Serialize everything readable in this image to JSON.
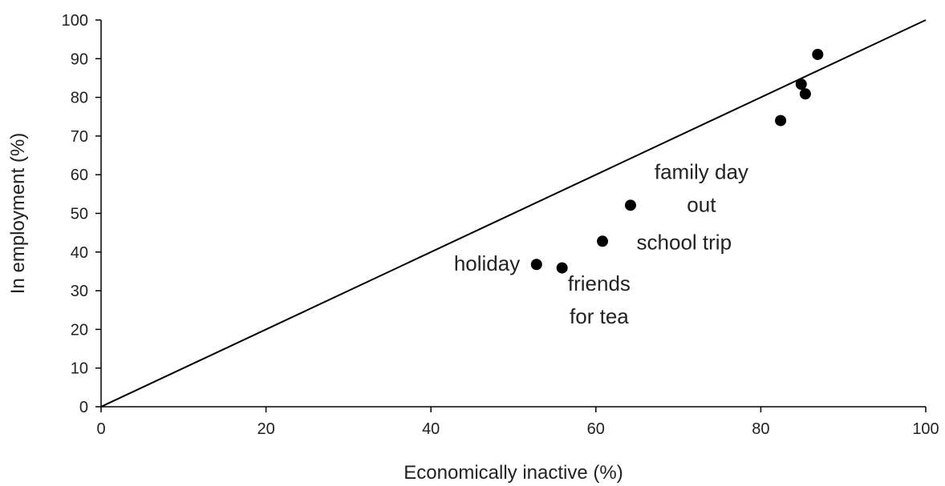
{
  "chart_data": {
    "type": "scatter",
    "title": "",
    "xlabel": "Economically inactive (%)",
    "ylabel": "In employment (%)",
    "xlim": [
      0,
      100
    ],
    "ylim": [
      0,
      100
    ],
    "xticks": [
      0,
      20,
      40,
      60,
      80,
      100
    ],
    "yticks": [
      0,
      10,
      20,
      30,
      40,
      50,
      60,
      70,
      80,
      90,
      100
    ],
    "grid": false,
    "reference_line": {
      "x": [
        0,
        100
      ],
      "y": [
        0,
        100
      ]
    },
    "points": [
      {
        "x": 52.8,
        "y": 36.8
      },
      {
        "x": 55.9,
        "y": 35.9
      },
      {
        "x": 60.8,
        "y": 42.8
      },
      {
        "x": 64.2,
        "y": 52.1
      },
      {
        "x": 82.4,
        "y": 74.0
      },
      {
        "x": 84.9,
        "y": 83.4
      },
      {
        "x": 85.4,
        "y": 80.9
      },
      {
        "x": 86.9,
        "y": 91.1
      }
    ],
    "annotations": [
      {
        "lines": [
          "holiday"
        ],
        "x": 50.8,
        "y": 35.2,
        "anchor": "end"
      },
      {
        "lines": [
          "friends",
          "for tea"
        ],
        "x": 60.4,
        "y": 30.0,
        "anchor": "middle"
      },
      {
        "lines": [
          "school trip"
        ],
        "x": 70.7,
        "y": 40.7,
        "anchor": "middle"
      },
      {
        "lines": [
          "family day",
          "out"
        ],
        "x": 72.8,
        "y": 58.9,
        "anchor": "middle"
      }
    ]
  }
}
